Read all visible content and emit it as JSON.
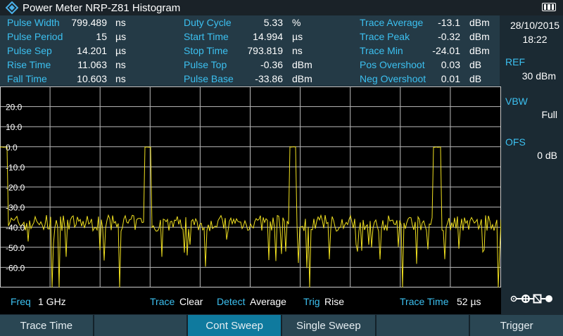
{
  "title": "Power Meter NRP-Z81 Histogram",
  "measurements": [
    [
      {
        "label": "Pulse Width",
        "value": "799.489",
        "unit": "ns"
      },
      {
        "label": "Duty Cycle",
        "value": "5.33",
        "unit": "%"
      },
      {
        "label": "Trace Average",
        "value": "-13.1",
        "unit": "dBm"
      }
    ],
    [
      {
        "label": "Pulse Period",
        "value": "15",
        "unit": "µs"
      },
      {
        "label": "Start Time",
        "value": "14.994",
        "unit": "µs"
      },
      {
        "label": "Trace Peak",
        "value": "-0.32",
        "unit": "dBm"
      }
    ],
    [
      {
        "label": "Pulse Sep",
        "value": "14.201",
        "unit": "µs"
      },
      {
        "label": "Stop Time",
        "value": "793.819",
        "unit": "ns"
      },
      {
        "label": "Trace Min",
        "value": "-24.01",
        "unit": "dBm"
      }
    ],
    [
      {
        "label": "Rise Time",
        "value": "11.063",
        "unit": "ns"
      },
      {
        "label": "Pulse Top",
        "value": "-0.36",
        "unit": "dBm"
      },
      {
        "label": "Pos Overshoot",
        "value": "0.03",
        "unit": "dB"
      }
    ],
    [
      {
        "label": "Fall Time",
        "value": "10.603",
        "unit": "ns"
      },
      {
        "label": "Pulse Base",
        "value": "-33.86",
        "unit": "dBm"
      },
      {
        "label": "Neg Overshoot",
        "value": "0.01",
        "unit": "dB"
      }
    ]
  ],
  "side": {
    "date": "28/10/2015",
    "time": "18:22",
    "ref_label": "REF",
    "ref_value": "30 dBm",
    "vbw_label": "VBW",
    "vbw_value": "Full",
    "ofs_label": "OFS",
    "ofs_value": "0 dB"
  },
  "plot": {
    "y_ticks": [
      "20.0",
      "10.0",
      "0.0",
      "-10.0",
      "-20.0",
      "-30.0",
      "-40.0",
      "-50.0",
      "-60.0"
    ],
    "y_range": [
      -70,
      30
    ],
    "trace_color": "#f0e020"
  },
  "status": {
    "freq_label": "Freq",
    "freq_value": "1 GHz",
    "trace_label": "Trace",
    "trace_value": "Clear",
    "detect_label": "Detect",
    "detect_value": "Average",
    "trig_label": "Trig",
    "trig_value": "Rise",
    "tracetime_label": "Trace Time",
    "tracetime_value": "52 µs"
  },
  "softkeys": [
    "Trace Time",
    "",
    "Cont Sweep",
    "Single Sweep",
    "",
    "Trigger"
  ]
}
